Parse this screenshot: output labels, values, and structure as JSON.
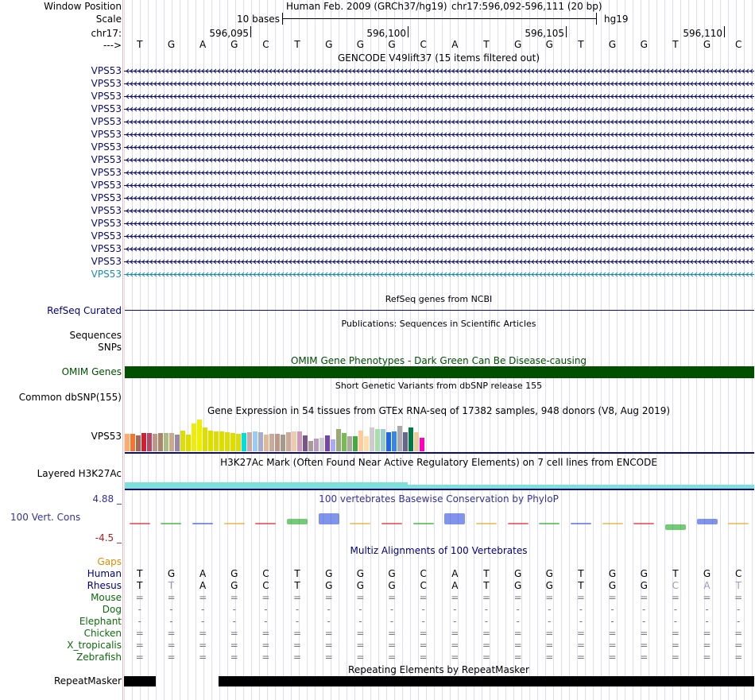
{
  "header": {
    "window_position_label": "Window Position",
    "scale_label": "Scale",
    "chrom_label": "chr17:",
    "arrow_label": "--->",
    "assembly_text": "Human Feb. 2009 (GRCh37/hg19)",
    "position_text": "chr17:596,092-596,111 (20 bp)",
    "scale_text": "10 bases",
    "db_text": "hg19",
    "ruler_positions": [
      "596,095",
      "596,100",
      "596,105",
      "596,110"
    ]
  },
  "sequence": [
    "T",
    "G",
    "A",
    "G",
    "C",
    "T",
    "G",
    "G",
    "G",
    "C",
    "A",
    "T",
    "G",
    "G",
    "T",
    "G",
    "G",
    "T",
    "G",
    "C"
  ],
  "gencode": {
    "title": "GENCODE V49lift37 (15 items filtered out)",
    "items": [
      "VPS53",
      "VPS53",
      "VPS53",
      "VPS53",
      "VPS53",
      "VPS53",
      "VPS53",
      "VPS53",
      "VPS53",
      "VPS53",
      "VPS53",
      "VPS53",
      "VPS53",
      "VPS53",
      "VPS53",
      "VPS53",
      "VPS53"
    ],
    "colors": {
      "dark": "#0c0c78",
      "light": "#1a8cb0"
    }
  },
  "refseq": {
    "title": "RefSeq genes from NCBI",
    "label": "RefSeq Curated"
  },
  "publications": {
    "title": "Publications: Sequences in Scientific Articles",
    "label_line1": "Sequences",
    "label_line2": "SNPs"
  },
  "omim": {
    "title": "OMIM Gene Phenotypes - Dark Green Can Be Disease-causing",
    "label": "OMIM Genes",
    "color": "#005000"
  },
  "dbsnp": {
    "title": "Short Genetic Variants from dbSNP release 155",
    "label": "Common dbSNP(155)"
  },
  "gtex": {
    "title": "Gene Expression in 54 tissues from GTEx RNA-seq of 17382 samples, 948 donors (V8, Aug 2019)",
    "label": "VPS53",
    "relative_expression": [
      0.49,
      0.49,
      0.44,
      0.51,
      0.51,
      0.49,
      0.51,
      0.51,
      0.51,
      0.47,
      0.58,
      0.47,
      0.78,
      0.89,
      0.67,
      0.57,
      0.55,
      0.55,
      0.53,
      0.51,
      0.48,
      0.51,
      0.53,
      0.55,
      0.53,
      0.47,
      0.49,
      0.49,
      0.47,
      0.53,
      0.55,
      0.55,
      0.44,
      0.29,
      0.36,
      0.38,
      0.45,
      0.34,
      0.63,
      0.51,
      0.42,
      0.42,
      0.57,
      0.42,
      0.67,
      0.63,
      0.63,
      0.53,
      0.55,
      0.72,
      0.53,
      0.67,
      0.53,
      0.38
    ],
    "tissue_colors": [
      "#FFAA66",
      "#EE7733",
      "#AA6655",
      "#CC2233",
      "#BB4466",
      "#BB9988",
      "#AA8866",
      "#AABB88",
      "#CCAA88",
      "#9988AA",
      "#DDDD00",
      "#DDDD00",
      "#EEEE00",
      "#EEEE00",
      "#DDDD00",
      "#DDDD00",
      "#DDDD00",
      "#DDDD00",
      "#DDDD00",
      "#DDDD00",
      "#DDDD00",
      "#00DDDD",
      "#CCAAAA",
      "#99CCEE",
      "#AAAACC",
      "#DDBB99",
      "#CCAA99",
      "#BB9988",
      "#AA9988",
      "#CCAA99",
      "#EECCAA",
      "#CC99BB",
      "#775588",
      "#AA9999",
      "#BB99BB",
      "#CCCCCC",
      "#7744AA",
      "#AAAAEE",
      "#99AA77",
      "#77BB55",
      "#AAAA99",
      "#44AA44",
      "#FFCC99",
      "#FFDDAA",
      "#CCCCCC",
      "#AADDAA",
      "#99CCCC",
      "#2266DD",
      "#3388EE",
      "#AAAAAA",
      "#666688",
      "#007744",
      "#EECC99",
      "#FF00BB"
    ]
  },
  "h3k27ac": {
    "title": "H3K27Ac Mark (Often Found Near Active Regulatory Elements) on 7 cell lines from ENCODE",
    "label": "Layered H3K27Ac",
    "color": "#7ee0d8"
  },
  "conservation": {
    "title": "100 vertebrates Basewise Conservation by PhyloP",
    "label": "100 Vert. Cons",
    "ymax": "4.88 _",
    "ymin": "-4.5 _",
    "scores": [
      0.1,
      0.1,
      0.1,
      0.1,
      0.1,
      0.8,
      1.6,
      0.15,
      0.15,
      0.2,
      1.6,
      0.1,
      0.1,
      0.1,
      0.1,
      0.1,
      0.1,
      -0.8,
      0.8,
      0.1
    ]
  },
  "multiz": {
    "title": "Multiz Alignments of 100 Vertebrates",
    "gaps_label": "Gaps",
    "rows": [
      {
        "name": "Human",
        "kind": "seq",
        "values": [
          "T",
          "G",
          "A",
          "G",
          "C",
          "T",
          "G",
          "G",
          "G",
          "C",
          "A",
          "T",
          "G",
          "G",
          "T",
          "G",
          "G",
          "T",
          "G",
          "C"
        ]
      },
      {
        "name": "Rhesus",
        "kind": "seq",
        "values": [
          "T",
          "T",
          "A",
          "G",
          "C",
          "T",
          "G",
          "G",
          "G",
          "C",
          "A",
          "T",
          "G",
          "G",
          "T",
          "G",
          "G",
          "C",
          "A",
          "T"
        ]
      },
      {
        "name": "Mouse",
        "kind": "sym",
        "values": [
          "=",
          "=",
          "=",
          "=",
          "=",
          "=",
          "=",
          "=",
          "=",
          "=",
          "=",
          "=",
          "=",
          "=",
          "=",
          "=",
          "=",
          "=",
          "=",
          "="
        ]
      },
      {
        "name": "Dog",
        "kind": "sym",
        "values": [
          "-",
          "-",
          "-",
          "-",
          "-",
          "-",
          "-",
          "-",
          "-",
          "-",
          "-",
          "-",
          "-",
          "-",
          "-",
          "-",
          "-",
          "-",
          "-",
          "-"
        ]
      },
      {
        "name": "Elephant",
        "kind": "sym",
        "values": [
          "-",
          "-",
          "-",
          "-",
          "-",
          "-",
          "-",
          "-",
          "-",
          "-",
          "-",
          "-",
          "-",
          "-",
          "-",
          "-",
          "-",
          "-",
          "-",
          "-"
        ]
      },
      {
        "name": "Chicken",
        "kind": "sym",
        "values": [
          "=",
          "=",
          "=",
          "=",
          "=",
          "=",
          "=",
          "=",
          "=",
          "=",
          "=",
          "=",
          "=",
          "=",
          "=",
          "=",
          "=",
          "=",
          "=",
          "="
        ]
      },
      {
        "name": "X_tropicalis",
        "kind": "sym",
        "values": [
          "=",
          "=",
          "=",
          "=",
          "=",
          "=",
          "=",
          "=",
          "=",
          "=",
          "=",
          "=",
          "=",
          "=",
          "=",
          "=",
          "=",
          "=",
          "=",
          "="
        ]
      },
      {
        "name": "Zebrafish",
        "kind": "sym",
        "values": [
          "=",
          "=",
          "=",
          "=",
          "=",
          "=",
          "=",
          "=",
          "=",
          "=",
          "=",
          "=",
          "=",
          "=",
          "=",
          "=",
          "=",
          "=",
          "=",
          "="
        ]
      }
    ]
  },
  "repeatmasker": {
    "title": "Repeating Elements by RepeatMasker",
    "label": "RepeatMasker"
  }
}
